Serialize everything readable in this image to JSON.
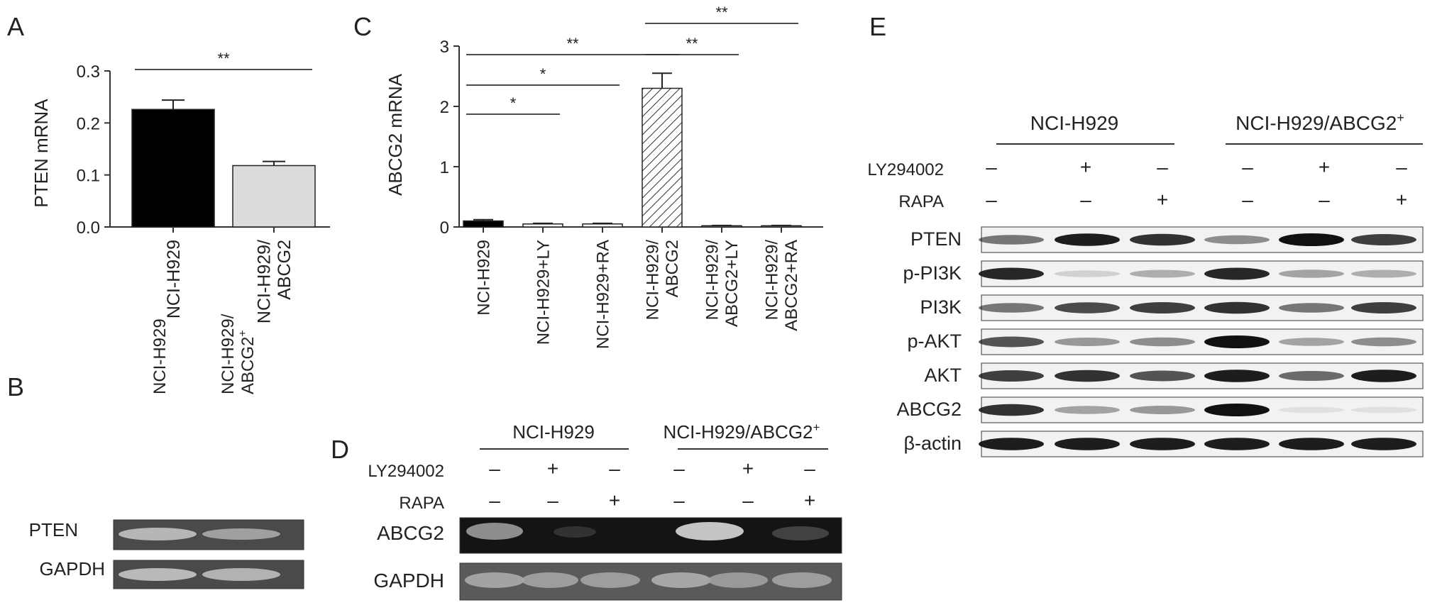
{
  "panels": {
    "A": {
      "letter": "A",
      "chart_data": {
        "type": "bar",
        "ylabel": "PTEN mRNA",
        "ylim": [
          0,
          0.3
        ],
        "yticks": [
          "0.0",
          "0.1",
          "0.2",
          "0.3"
        ],
        "categories": [
          "NCI-H929",
          "NCI-H929/\nABCG2"
        ],
        "values": [
          0.226,
          0.118
        ],
        "errors": [
          0.018,
          0.008
        ],
        "fills": [
          "solid-black",
          "light-gray"
        ],
        "significance": [
          {
            "from": 0,
            "to": 1,
            "label": "**"
          }
        ]
      }
    },
    "B": {
      "letter": "B",
      "columns": [
        "NCI-H929",
        "NCI-H929/\nABCG2+"
      ],
      "rows": [
        "PTEN",
        "GAPDH"
      ]
    },
    "C": {
      "letter": "C",
      "chart_data": {
        "type": "bar",
        "ylabel": "ABCG2 mRNA",
        "ylim": [
          0,
          3
        ],
        "yticks": [
          "0",
          "1",
          "2",
          "3"
        ],
        "categories": [
          "NCI-H929",
          "NCI-H929+LY",
          "NCI-H929+RA",
          "NCI-H929/\nABCG2",
          "NCI-H929/\nABCG2+LY",
          "NCI-H929/\nABCG2+RA"
        ],
        "values": [
          0.1,
          0.05,
          0.05,
          2.3,
          0.02,
          0.02
        ],
        "errors": [
          0.02,
          0.01,
          0.01,
          0.25,
          0.005,
          0.005
        ],
        "fills": [
          "solid-black",
          "white",
          "white",
          "hatched",
          "white",
          "white"
        ],
        "significance": [
          {
            "from": 0,
            "to": 1,
            "label": "*"
          },
          {
            "from": 0,
            "to": 2,
            "label": "*"
          },
          {
            "from": 0,
            "to": 3,
            "label": "**"
          },
          {
            "from": 3,
            "to": 4,
            "label": "**"
          },
          {
            "from": 3,
            "to": 5,
            "label": "**"
          }
        ]
      }
    },
    "D": {
      "letter": "D",
      "groups": [
        "NCI-H929",
        "NCI-H929/ABCG2+"
      ],
      "treatments": [
        {
          "label": "LY294002",
          "marks": [
            "–",
            "+",
            "–",
            "–",
            "+",
            "–"
          ]
        },
        {
          "label": "RAPA",
          "marks": [
            "–",
            "–",
            "+",
            "–",
            "–",
            "+"
          ]
        }
      ],
      "rows": [
        "ABCG2",
        "GAPDH"
      ]
    },
    "E": {
      "letter": "E",
      "groups": [
        "NCI-H929",
        "NCI-H929/ABCG2+"
      ],
      "treatments": [
        {
          "label": "LY294002",
          "marks": [
            "–",
            "+",
            "–",
            "–",
            "+",
            "–"
          ]
        },
        {
          "label": "RAPA",
          "marks": [
            "–",
            "–",
            "+",
            "–",
            "–",
            "+"
          ]
        }
      ],
      "rows": [
        "PTEN",
        "p-PI3K",
        "PI3K",
        "p-AKT",
        "AKT",
        "ABCG2",
        "β-actin"
      ]
    }
  }
}
